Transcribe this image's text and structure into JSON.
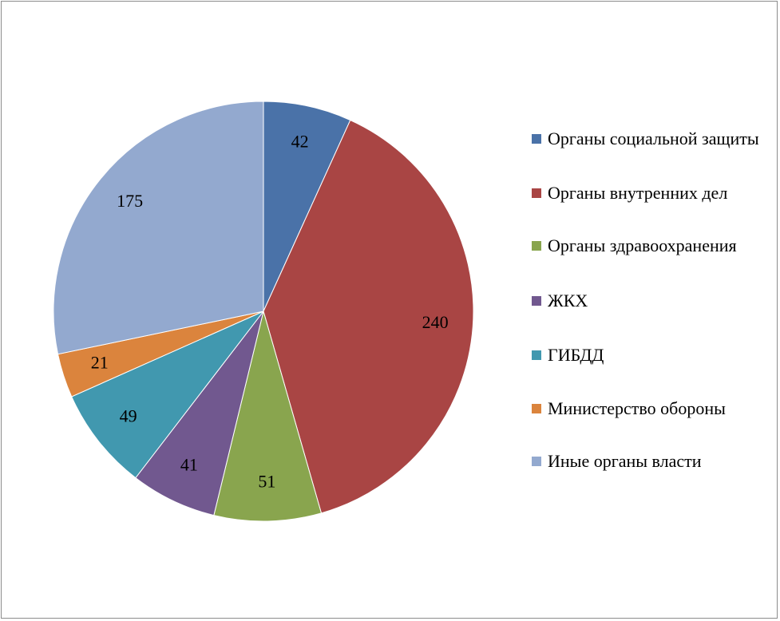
{
  "chart_data": {
    "type": "pie",
    "categories": [
      "Органы социальной защиты",
      "Органы внутренних дел",
      "Органы здравоохранения",
      "ЖКХ",
      "ГИБДД",
      "Министерство обороны",
      "Иные органы власти"
    ],
    "values": [
      42,
      240,
      51,
      41,
      49,
      21,
      175
    ],
    "colors": [
      "#4a72a8",
      "#a94544",
      "#89a54e",
      "#71588f",
      "#4198af",
      "#db843d",
      "#93a9cf"
    ],
    "legend_position": "right"
  },
  "legend": {
    "items": [
      {
        "label": "Органы социальной защиты",
        "color": "#4a72a8"
      },
      {
        "label": "Органы внутренних дел",
        "color": "#a94544"
      },
      {
        "label": "Органы здравоохранения",
        "color": "#89a54e"
      },
      {
        "label": "ЖКХ",
        "color": "#71588f"
      },
      {
        "label": "ГИБДД",
        "color": "#4198af"
      },
      {
        "label": "Министерство обороны",
        "color": "#db843d"
      },
      {
        "label": "Иные органы власти",
        "color": "#93a9cf"
      }
    ]
  }
}
